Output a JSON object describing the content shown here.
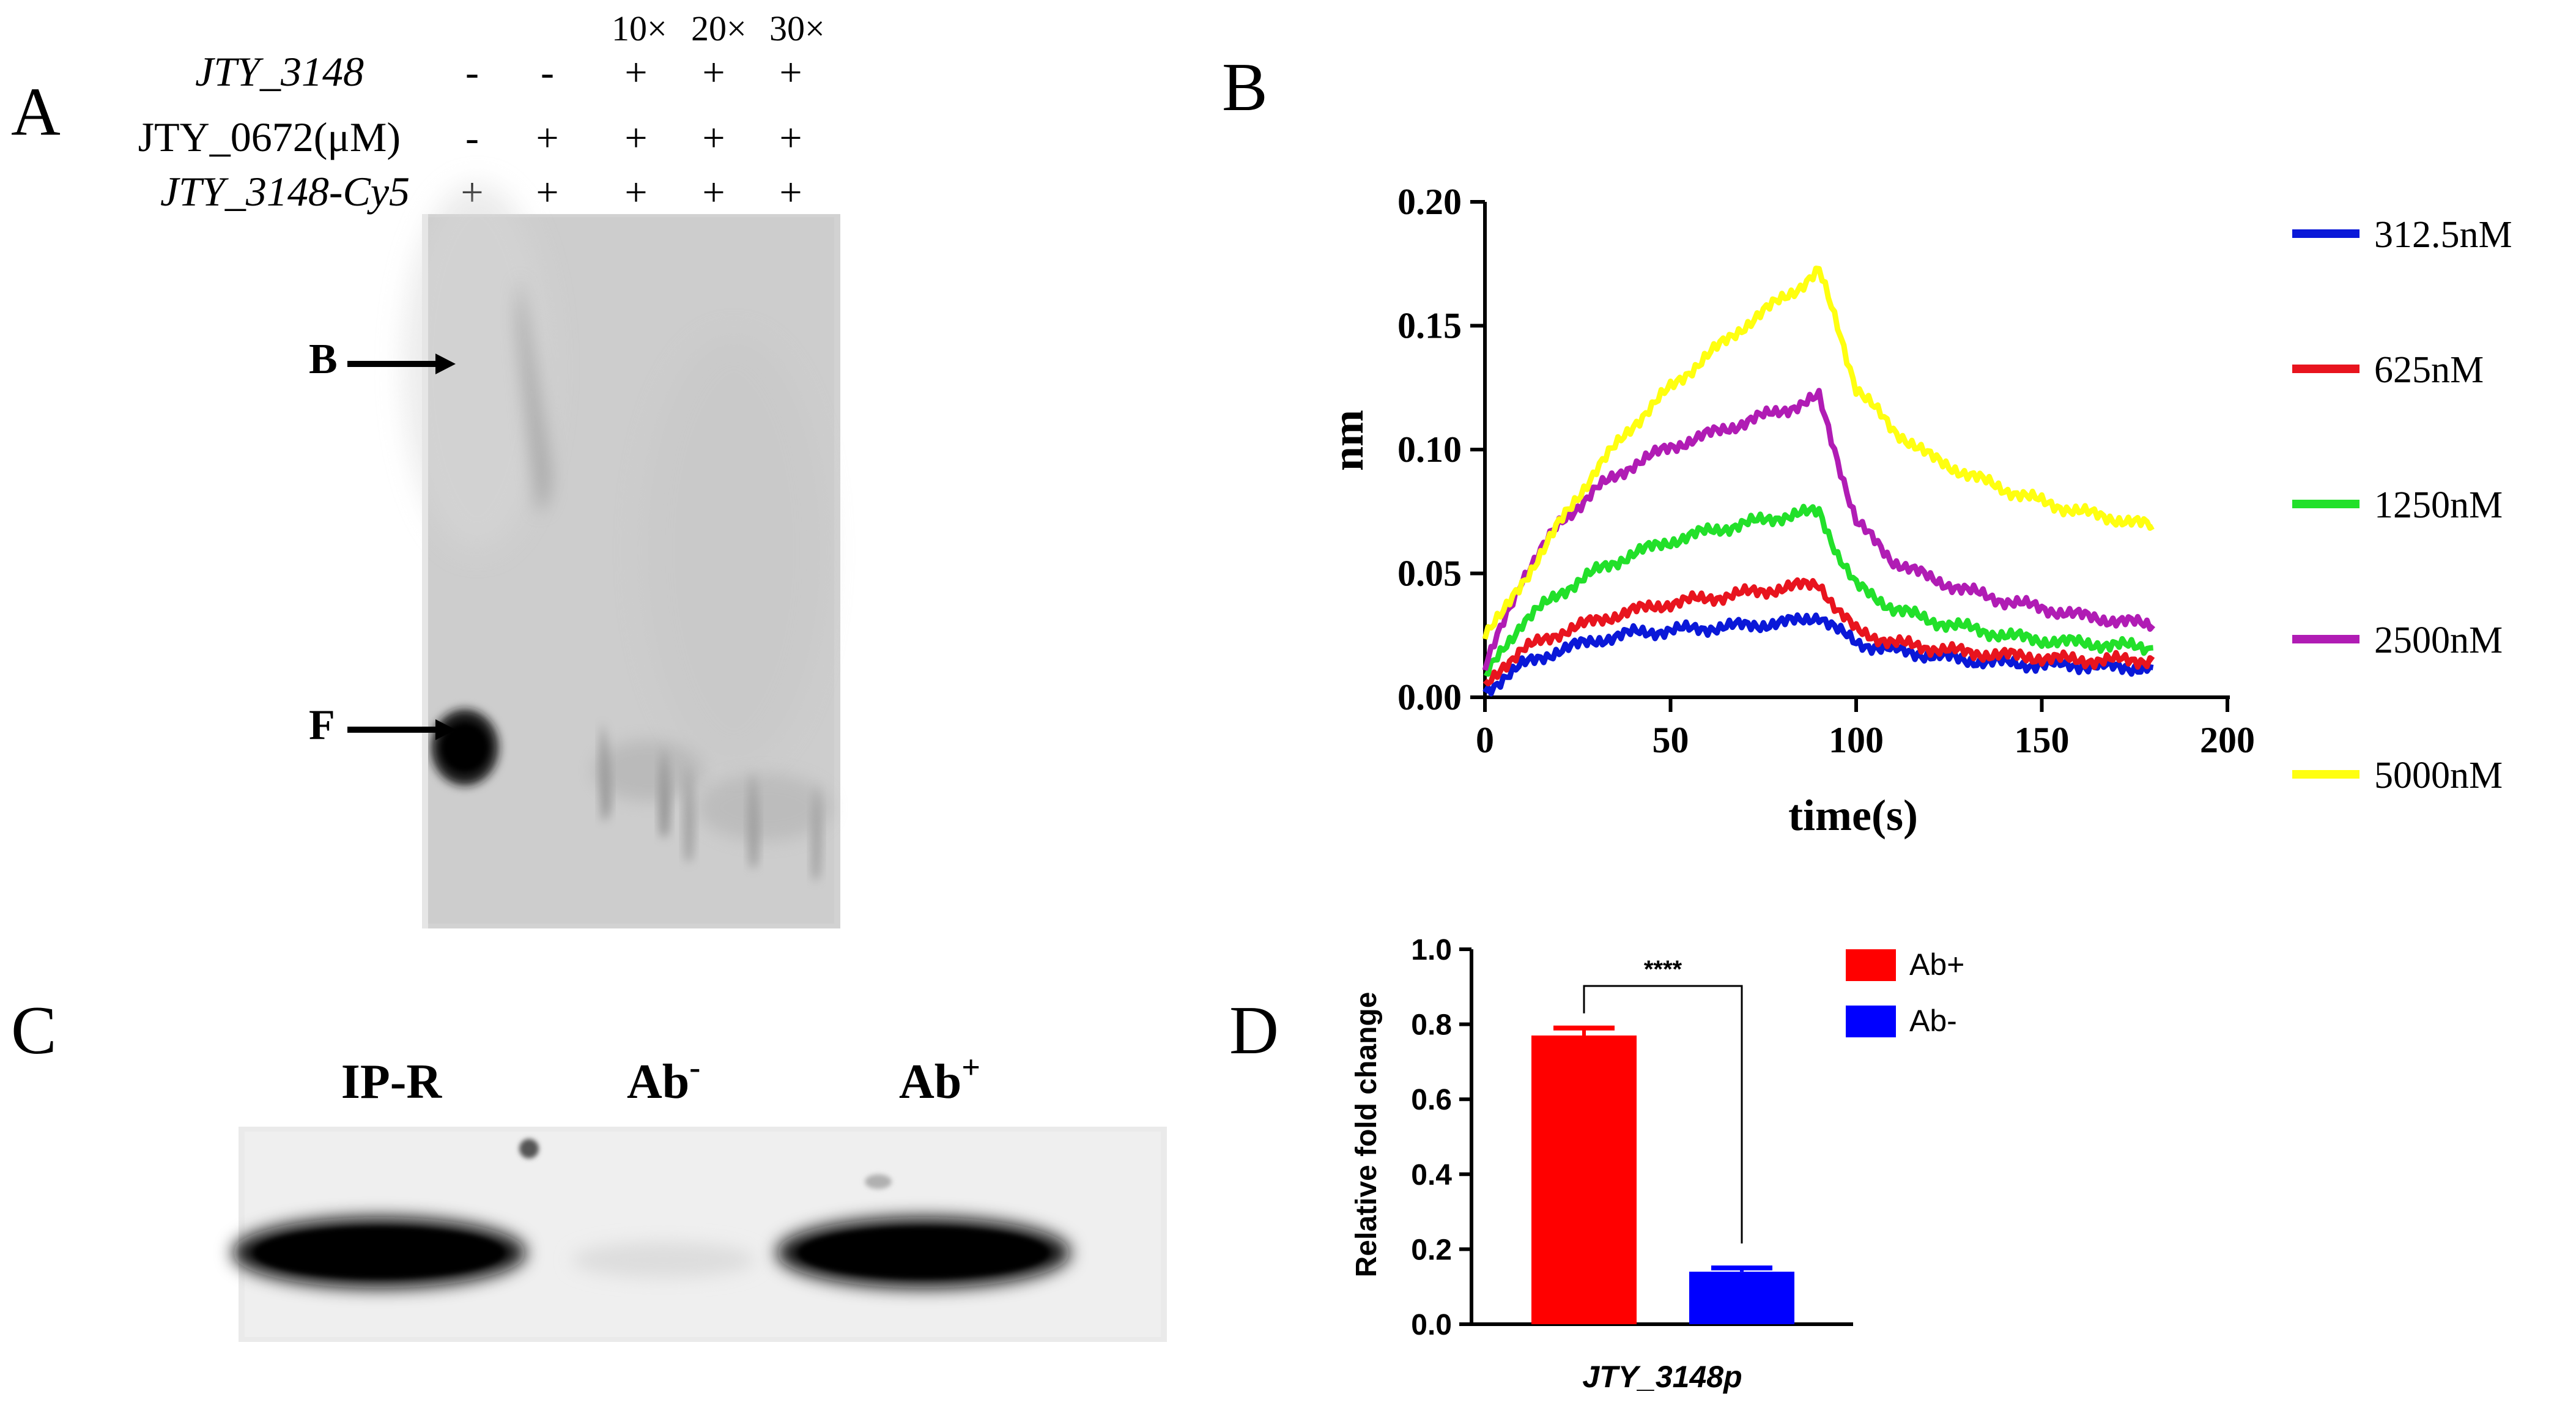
{
  "panel_letters": {
    "a": "A",
    "b": "B",
    "c": "C",
    "d": "D"
  },
  "panel_a": {
    "row_labels": [
      "JTY_3148",
      "JTY_0672(μM)",
      "JTY_3148-Cy5"
    ],
    "competitor_labels": [
      "10×",
      "20×",
      "30×"
    ],
    "signs": [
      [
        "-",
        "-",
        "+",
        "+",
        "+"
      ],
      [
        "-",
        "+",
        "+",
        "+",
        "+"
      ],
      [
        "+",
        "+",
        "+",
        "+",
        "+"
      ]
    ],
    "arrow_b": "B",
    "arrow_f": "F"
  },
  "panel_c": {
    "lane_labels": {
      "ip": "IP-R",
      "ab_neg": "Ab",
      "ab_neg_sup": "-",
      "ab_pos": "Ab",
      "ab_pos_sup": "+"
    }
  },
  "chart_data": [
    {
      "id": "panel-B",
      "type": "line",
      "xlabel": "time(s)",
      "ylabel": "nm",
      "xlim": [
        0,
        200
      ],
      "ylim": [
        0,
        0.2
      ],
      "xticks": [
        "0",
        "50",
        "100",
        "150",
        "200"
      ],
      "yticks": [
        "0.00",
        "0.05",
        "0.10",
        "0.15",
        "0.20"
      ],
      "grid": false,
      "legend_position": "right",
      "series": [
        {
          "name": "312.5nM",
          "color": "#0a18d8",
          "x": [
            0,
            5,
            10,
            20,
            30,
            40,
            50,
            60,
            70,
            80,
            85,
            90,
            95,
            100,
            110,
            120,
            130,
            140,
            150,
            160,
            170,
            180
          ],
          "values": [
            0.002,
            0.008,
            0.013,
            0.019,
            0.023,
            0.026,
            0.027,
            0.028,
            0.029,
            0.03,
            0.031,
            0.033,
            0.027,
            0.022,
            0.019,
            0.017,
            0.015,
            0.014,
            0.013,
            0.013,
            0.012,
            0.012
          ]
        },
        {
          "name": "625nM",
          "color": "#e8141e",
          "x": [
            0,
            5,
            10,
            20,
            30,
            40,
            50,
            60,
            70,
            80,
            85,
            90,
            95,
            100,
            110,
            120,
            130,
            140,
            150,
            160,
            170,
            180
          ],
          "values": [
            0.004,
            0.013,
            0.019,
            0.026,
            0.031,
            0.035,
            0.038,
            0.04,
            0.042,
            0.044,
            0.045,
            0.046,
            0.035,
            0.027,
            0.022,
            0.02,
            0.018,
            0.017,
            0.016,
            0.015,
            0.015,
            0.015
          ]
        },
        {
          "name": "1250nM",
          "color": "#22e02a",
          "x": [
            0,
            5,
            10,
            20,
            30,
            40,
            50,
            60,
            70,
            80,
            85,
            90,
            95,
            100,
            110,
            120,
            130,
            140,
            150,
            160,
            170,
            180
          ],
          "values": [
            0.008,
            0.02,
            0.03,
            0.042,
            0.051,
            0.058,
            0.063,
            0.067,
            0.07,
            0.073,
            0.074,
            0.075,
            0.058,
            0.045,
            0.036,
            0.031,
            0.028,
            0.025,
            0.023,
            0.022,
            0.021,
            0.02
          ]
        },
        {
          "name": "2500nM",
          "color": "#b01cb4",
          "x": [
            0,
            5,
            10,
            20,
            30,
            40,
            50,
            60,
            70,
            80,
            85,
            90,
            95,
            100,
            110,
            120,
            130,
            140,
            150,
            160,
            170,
            180
          ],
          "values": [
            0.012,
            0.03,
            0.048,
            0.07,
            0.084,
            0.094,
            0.101,
            0.106,
            0.111,
            0.116,
            0.118,
            0.121,
            0.096,
            0.071,
            0.055,
            0.048,
            0.043,
            0.039,
            0.036,
            0.033,
            0.031,
            0.029
          ]
        },
        {
          "name": "5000nM",
          "color": "#ffff10",
          "x": [
            0,
            5,
            10,
            20,
            30,
            40,
            50,
            60,
            70,
            80,
            85,
            90,
            95,
            100,
            110,
            120,
            130,
            140,
            150,
            160,
            170,
            180
          ],
          "values": [
            0.026,
            0.034,
            0.046,
            0.07,
            0.092,
            0.11,
            0.125,
            0.138,
            0.15,
            0.161,
            0.166,
            0.172,
            0.15,
            0.125,
            0.108,
            0.097,
            0.09,
            0.084,
            0.079,
            0.075,
            0.072,
            0.069
          ]
        }
      ]
    },
    {
      "id": "panel-D",
      "type": "bar",
      "categories": [
        "Ab+",
        "Ab-"
      ],
      "values": [
        0.77,
        0.14
      ],
      "errors": [
        0.02,
        0.01
      ],
      "colors": [
        "#ff0000",
        "#0000ff"
      ],
      "xlabel": "JTY_3148p",
      "ylabel": "Relative fold change",
      "ylim": [
        0,
        1.0
      ],
      "yticks": [
        "0.0",
        "0.2",
        "0.4",
        "0.6",
        "0.8",
        "1.0"
      ],
      "significance": "****",
      "legend": [
        "Ab+",
        "Ab-"
      ],
      "legend_position": "top-right"
    }
  ]
}
